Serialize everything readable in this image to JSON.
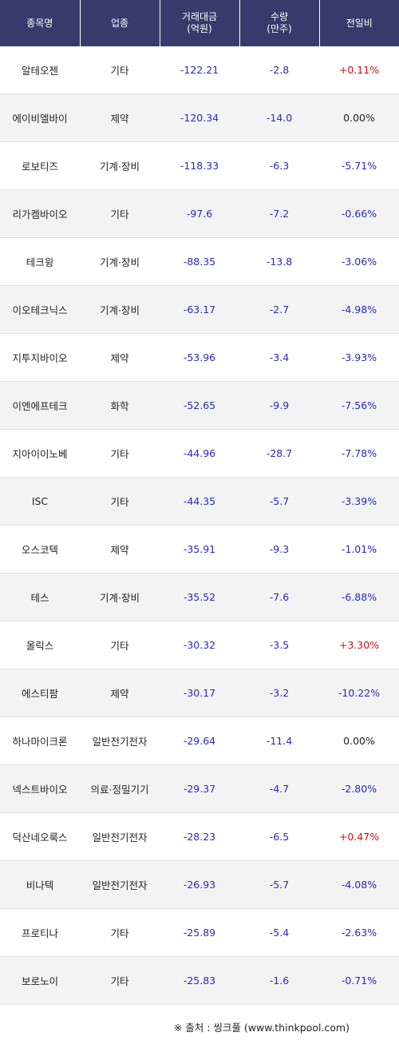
{
  "header": {
    "name": "종목명",
    "sector": "업종",
    "amount_line1": "거래대금",
    "amount_line2": "(억원)",
    "volume_line1": "수량",
    "volume_line2": "(만주)",
    "change": "전일비"
  },
  "rows": [
    {
      "name": "알테오젠",
      "sector": "기타",
      "amount": "-122.21",
      "volume": "-2.8",
      "change": "+0.11%",
      "dir": "up"
    },
    {
      "name": "에이비엘바이",
      "sector": "제약",
      "amount": "-120.34",
      "volume": "-14.0",
      "change": "0.00%",
      "dir": "flat"
    },
    {
      "name": "로보티즈",
      "sector": "기계·장비",
      "amount": "-118.33",
      "volume": "-6.3",
      "change": "-5.71%",
      "dir": "down"
    },
    {
      "name": "리가켐바이오",
      "sector": "기타",
      "amount": "-97.6",
      "volume": "-7.2",
      "change": "-0.66%",
      "dir": "down"
    },
    {
      "name": "테크윙",
      "sector": "기계·장비",
      "amount": "-88.35",
      "volume": "-13.8",
      "change": "-3.06%",
      "dir": "down"
    },
    {
      "name": "이오테크닉스",
      "sector": "기계·장비",
      "amount": "-63.17",
      "volume": "-2.7",
      "change": "-4.98%",
      "dir": "down"
    },
    {
      "name": "지투지바이오",
      "sector": "제약",
      "amount": "-53.96",
      "volume": "-3.4",
      "change": "-3.93%",
      "dir": "down"
    },
    {
      "name": "이엔에프테크",
      "sector": "화학",
      "amount": "-52.65",
      "volume": "-9.9",
      "change": "-7.56%",
      "dir": "down"
    },
    {
      "name": "지아이이노베",
      "sector": "기타",
      "amount": "-44.96",
      "volume": "-28.7",
      "change": "-7.78%",
      "dir": "down"
    },
    {
      "name": "ISC",
      "sector": "기타",
      "amount": "-44.35",
      "volume": "-5.7",
      "change": "-3.39%",
      "dir": "down"
    },
    {
      "name": "오스코텍",
      "sector": "제약",
      "amount": "-35.91",
      "volume": "-9.3",
      "change": "-1.01%",
      "dir": "down"
    },
    {
      "name": "테스",
      "sector": "기계·장비",
      "amount": "-35.52",
      "volume": "-7.6",
      "change": "-6.88%",
      "dir": "down"
    },
    {
      "name": "올릭스",
      "sector": "기타",
      "amount": "-30.32",
      "volume": "-3.5",
      "change": "+3.30%",
      "dir": "up"
    },
    {
      "name": "에스티팜",
      "sector": "제약",
      "amount": "-30.17",
      "volume": "-3.2",
      "change": "-10.22%",
      "dir": "down"
    },
    {
      "name": "하나마이크론",
      "sector": "일반전기전자",
      "amount": "-29.64",
      "volume": "-11.4",
      "change": "0.00%",
      "dir": "flat"
    },
    {
      "name": "넥스트바이오",
      "sector": "의료·정밀기기",
      "amount": "-29.37",
      "volume": "-4.7",
      "change": "-2.80%",
      "dir": "down"
    },
    {
      "name": "덕산네오룩스",
      "sector": "일반전기전자",
      "amount": "-28.23",
      "volume": "-6.5",
      "change": "+0.47%",
      "dir": "up"
    },
    {
      "name": "비나텍",
      "sector": "일반전기전자",
      "amount": "-26.93",
      "volume": "-5.7",
      "change": "-4.08%",
      "dir": "down"
    },
    {
      "name": "프로티나",
      "sector": "기타",
      "amount": "-25.89",
      "volume": "-5.4",
      "change": "-2.63%",
      "dir": "down"
    },
    {
      "name": "보로노이",
      "sector": "기타",
      "amount": "-25.83",
      "volume": "-1.6",
      "change": "-0.71%",
      "dir": "down"
    }
  ],
  "footer": {
    "source": "※ 출처 : 씽크풀 (www.thinkpool.com)"
  }
}
